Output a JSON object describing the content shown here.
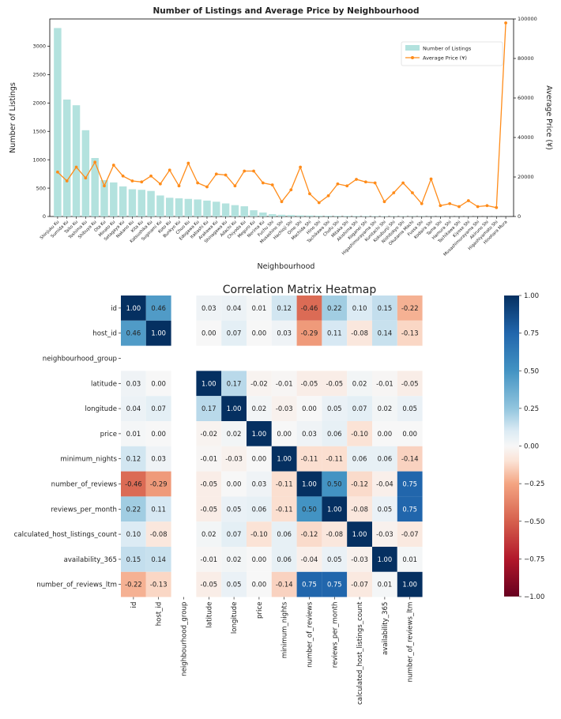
{
  "chart_data": [
    {
      "type": "bar",
      "title": "Number of Listings and Average Price by Neighbourhood",
      "xlabel": "Neighbourhood",
      "ylabel": "Number of Listings",
      "y2label": "Average Price (¥)",
      "ylim": [
        0,
        3480
      ],
      "yticks": [
        0,
        500,
        1000,
        1500,
        2000,
        2500,
        3000
      ],
      "y2lim": [
        0,
        100000
      ],
      "y2ticks": [
        0,
        20000,
        40000,
        60000,
        80000,
        100000
      ],
      "legend": "upper-right",
      "categories": [
        "Shinjuku Ku",
        "Sumida Ku",
        "Taito Ku",
        "Toshima Ku",
        "Shibuya Ku",
        "Ota Ku",
        "Minato Ku",
        "Setagaya Ku",
        "Nakano Ku",
        "Kita Ku",
        "Katsushika Ku",
        "Suginami Ku",
        "Koto Ku",
        "Bunkyo Ku",
        "Chuo Ku",
        "Edogawa Ku",
        "Itabashi Ku",
        "Arakawa Ku",
        "Shinagawa Ku",
        "Adachi Ku",
        "Chiyoda Ku",
        "Meguro Ku",
        "Nerima Ku",
        "Fuchu Shi",
        "Musashino Shi",
        "Hachioji Shi",
        "Ome Shi",
        "Machida Shi",
        "Hino Shi",
        "Tachikawa Shi",
        "Chofu Shi",
        "Mitaka Shi",
        "Akishima Shi",
        "Koganei Shi",
        "Higashimurayama Shi",
        "Kunitachi Shi",
        "Kokubunji Shi",
        "Nishitokyo Shi",
        "Okutama Machi",
        "Fussa Shi",
        "Kodaira Shi",
        "Tama Shi",
        "Hamura Shi",
        "Tachikawa Shi",
        "Kiyose Shi",
        "Musashimurayama Shi",
        "Akiruno Shi",
        "Higashiyamato Shi",
        "Hinohara Mura"
      ],
      "series": [
        {
          "name": "Number of Listings",
          "type": "bar",
          "color": "#b3e2de",
          "values": [
            3320,
            2060,
            1960,
            1520,
            1030,
            640,
            600,
            530,
            480,
            470,
            450,
            370,
            330,
            320,
            310,
            300,
            280,
            260,
            230,
            200,
            180,
            110,
            70,
            40,
            30,
            25,
            20,
            18,
            15,
            14,
            12,
            11,
            10,
            9,
            8,
            7,
            6,
            6,
            5,
            5,
            4,
            4,
            3,
            3,
            3,
            2,
            2,
            2,
            1
          ]
        },
        {
          "name": "Average Price (¥)",
          "type": "line",
          "color": "#ff8c1a",
          "values": [
            22500,
            18000,
            25000,
            19500,
            27500,
            15500,
            26000,
            20500,
            18000,
            17500,
            20500,
            16500,
            23500,
            15500,
            27000,
            17000,
            15000,
            21500,
            21000,
            15500,
            23000,
            23000,
            17000,
            16000,
            7500,
            13500,
            25000,
            11500,
            7000,
            10500,
            16500,
            15500,
            18800,
            17500,
            17000,
            7500,
            12000,
            17000,
            12000,
            6500,
            19000,
            5500,
            6500,
            5000,
            8000,
            5000,
            5500,
            4500,
            98000
          ]
        }
      ]
    },
    {
      "type": "heatmap",
      "title": "Correlation Matrix Heatmap",
      "rows": [
        "id",
        "host_id",
        "neighbourhood_group",
        "latitude",
        "longitude",
        "price",
        "minimum_nights",
        "number_of_reviews",
        "reviews_per_month",
        "calculated_host_listings_count",
        "availability_365",
        "number_of_reviews_ltm"
      ],
      "columns": [
        "id",
        "host_id",
        "neighbourhood_group",
        "latitude",
        "longitude",
        "price",
        "minimum_nights",
        "number_of_reviews",
        "reviews_per_month",
        "calculated_host_listings_count",
        "availability_365",
        "number_of_reviews_ltm"
      ],
      "values": [
        [
          1.0,
          0.46,
          null,
          0.03,
          0.04,
          0.01,
          0.12,
          -0.46,
          0.22,
          0.1,
          0.15,
          -0.22
        ],
        [
          0.46,
          1.0,
          null,
          0.0,
          0.07,
          0.0,
          0.03,
          -0.29,
          0.11,
          -0.08,
          0.14,
          -0.13
        ],
        [
          null,
          null,
          null,
          null,
          null,
          null,
          null,
          null,
          null,
          null,
          null,
          null
        ],
        [
          0.03,
          0.0,
          null,
          1.0,
          0.17,
          -0.02,
          -0.01,
          -0.05,
          -0.05,
          0.02,
          -0.01,
          -0.05
        ],
        [
          0.04,
          0.07,
          null,
          0.17,
          1.0,
          0.02,
          -0.03,
          0.0,
          0.05,
          0.07,
          0.02,
          0.05
        ],
        [
          0.01,
          0.0,
          null,
          -0.02,
          0.02,
          1.0,
          0.0,
          0.03,
          0.06,
          -0.1,
          0.0,
          0.0
        ],
        [
          0.12,
          0.03,
          null,
          -0.01,
          -0.03,
          0.0,
          1.0,
          -0.11,
          -0.11,
          0.06,
          0.06,
          -0.14
        ],
        [
          -0.46,
          -0.29,
          null,
          -0.05,
          0.0,
          0.03,
          -0.11,
          1.0,
          0.5,
          -0.12,
          -0.04,
          0.75
        ],
        [
          0.22,
          0.11,
          null,
          -0.05,
          0.05,
          0.06,
          -0.11,
          0.5,
          1.0,
          -0.08,
          0.05,
          0.75
        ],
        [
          0.1,
          -0.08,
          null,
          0.02,
          0.07,
          -0.1,
          0.06,
          -0.12,
          -0.08,
          1.0,
          -0.03,
          -0.07
        ],
        [
          0.15,
          0.14,
          null,
          -0.01,
          0.02,
          0.0,
          0.06,
          -0.04,
          0.05,
          -0.03,
          1.0,
          0.01
        ],
        [
          -0.22,
          -0.13,
          null,
          -0.05,
          0.05,
          0.0,
          -0.14,
          0.75,
          0.75,
          -0.07,
          0.01,
          1.0
        ]
      ],
      "colormap": "RdBu",
      "vlim": [
        -1.0,
        1.0
      ],
      "colorbar_ticks": [
        "1.00",
        "0.75",
        "0.50",
        "0.25",
        "0.00",
        "−0.25",
        "−0.50",
        "−0.75",
        "−1.00"
      ]
    }
  ]
}
